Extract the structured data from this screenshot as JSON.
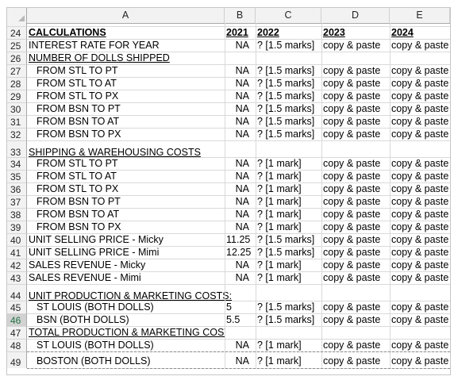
{
  "columns": [
    "A",
    "B",
    "C",
    "D",
    "E"
  ],
  "rows": [
    {
      "n": "24",
      "a": "CALCULATIONS",
      "b": "2021",
      "c": "2022",
      "d": "2023",
      "e": "2024",
      "style": "header"
    },
    {
      "n": "25",
      "a": "INTEREST RATE FOR YEAR",
      "b": "NA",
      "c": "? [1.5 marks]",
      "d": "copy & paste",
      "e": "copy & paste"
    },
    {
      "n": "26",
      "a": "NUMBER OF DOLLS SHIPPED",
      "b": "",
      "c": "",
      "d": "",
      "e": "",
      "style": "section"
    },
    {
      "n": "27",
      "a": "FROM STL TO PT",
      "b": "NA",
      "c": "? [1.5 marks]",
      "d": "copy & paste",
      "e": "copy & paste",
      "indent": true
    },
    {
      "n": "28",
      "a": "FROM STL TO AT",
      "b": "NA",
      "c": "? [1.5 marks]",
      "d": "copy & paste",
      "e": "copy & paste",
      "indent": true
    },
    {
      "n": "29",
      "a": "FROM STL TO PX",
      "b": "NA",
      "c": "? [1.5 marks]",
      "d": "copy & paste",
      "e": "copy & paste",
      "indent": true
    },
    {
      "n": "30",
      "a": "FROM BSN TO PT",
      "b": "NA",
      "c": "? [1.5 marks]",
      "d": "copy & paste",
      "e": "copy & paste",
      "indent": true
    },
    {
      "n": "31",
      "a": "FROM BSN TO AT",
      "b": "NA",
      "c": "? [1.5 marks]",
      "d": "copy & paste",
      "e": "copy & paste",
      "indent": true
    },
    {
      "n": "32",
      "a": "FROM BSN TO PX",
      "b": "NA",
      "c": "? [1.5 marks]",
      "d": "copy & paste",
      "e": "copy & paste",
      "indent": true
    },
    {
      "n": "33",
      "a": "SHIPPING & WAREHOUSING COSTS",
      "b": "",
      "c": "",
      "d": "",
      "e": "",
      "style": "section",
      "tall": true
    },
    {
      "n": "34",
      "a": "FROM STL TO PT",
      "b": "NA",
      "c": "? [1 mark]",
      "d": "copy & paste",
      "e": "copy & paste",
      "indent": true
    },
    {
      "n": "35",
      "a": "FROM STL TO AT",
      "b": "NA",
      "c": "? [1 mark]",
      "d": "copy & paste",
      "e": "copy & paste",
      "indent": true
    },
    {
      "n": "36",
      "a": "FROM STL TO PX",
      "b": "NA",
      "c": "? [1 mark]",
      "d": "copy & paste",
      "e": "copy & paste",
      "indent": true
    },
    {
      "n": "37",
      "a": "FROM BSN TO PT",
      "b": "NA",
      "c": "? [1 mark]",
      "d": "copy & paste",
      "e": "copy & paste",
      "indent": true
    },
    {
      "n": "38",
      "a": "FROM BSN TO AT",
      "b": "NA",
      "c": "? [1 mark]",
      "d": "copy & paste",
      "e": "copy & paste",
      "indent": true
    },
    {
      "n": "39",
      "a": "FROM BSN TO PX",
      "b": "NA",
      "c": "? [1 mark]",
      "d": "copy & paste",
      "e": "copy & paste",
      "indent": true
    },
    {
      "n": "40",
      "a": "UNIT SELLING PRICE - Micky",
      "b": "11.25",
      "c": "? [1.5 marks]",
      "d": "copy & paste",
      "e": "copy & paste"
    },
    {
      "n": "41",
      "a": "UNIT SELLING PRICE - Mimi",
      "b": "12.25",
      "c": "? [1.5 marks]",
      "d": "copy & paste",
      "e": "copy & paste"
    },
    {
      "n": "42",
      "a": " SALES REVENUE - Micky",
      "b": "NA",
      "c": "? [1 mark]",
      "d": "copy & paste",
      "e": "copy & paste"
    },
    {
      "n": "43",
      "a": " SALES REVENUE - Mimi",
      "b": "NA",
      "c": "? [1 mark]",
      "d": "copy & paste",
      "e": "copy & paste"
    },
    {
      "n": "44",
      "a": "UNIT PRODUCTION & MARKETING COSTS:",
      "b": "",
      "c": "",
      "d": "",
      "e": "",
      "style": "section",
      "tall": true
    },
    {
      "n": "45",
      "a": "ST LOUIS (BOTH DOLLS)",
      "b": "5",
      "c": "? [1.5 marks]",
      "d": "copy & paste",
      "e": "copy & paste",
      "indent": true,
      "bleft": true
    },
    {
      "n": "46",
      "a": "BSN (BOTH DOLLS)",
      "b": "5.5",
      "c": "? [1.5 marks]",
      "d": "copy & paste",
      "e": "copy & paste",
      "indent": true,
      "bleft": true,
      "selected": true
    },
    {
      "n": "47",
      "a": "TOTAL PRODUCTION & MARKETING COSTS",
      "b": "",
      "c": "",
      "d": "",
      "e": "",
      "style": "section"
    },
    {
      "n": "48",
      "a": "ST LOUIS (BOTH DOLLS)",
      "b": "NA",
      "c": "? [1 mark]",
      "d": "copy & paste",
      "e": "copy & paste",
      "indent": true
    },
    {
      "n": "49",
      "a": "BOSTON (BOTH DOLLS)",
      "b": "NA",
      "c": "? [1 mark]",
      "d": "copy & paste",
      "e": "copy & paste",
      "indent": true,
      "tall": true,
      "valign": "bottom"
    }
  ]
}
